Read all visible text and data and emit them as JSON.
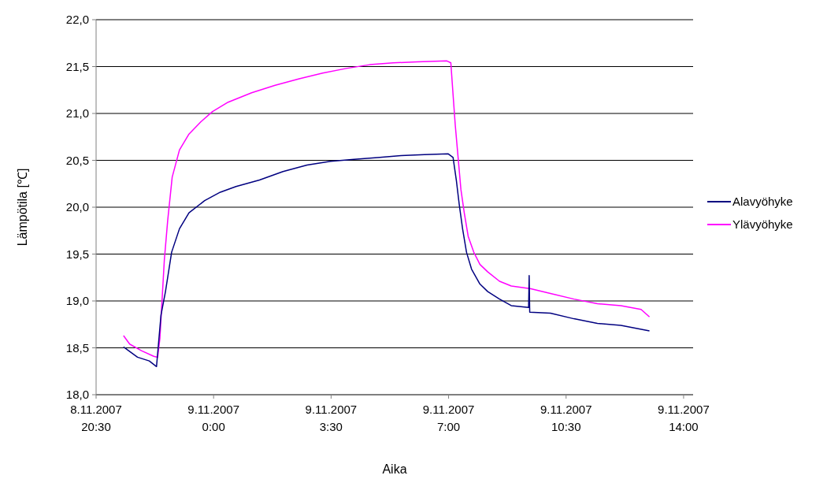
{
  "chart_data": {
    "type": "line",
    "xlabel": "Aika",
    "ylabel": "Lämpötila [℃]",
    "legend": "right",
    "grid": "y",
    "line_style": "solid",
    "marker": "none",
    "xlim": [
      "2007-11-08T20:30",
      "2007-11-09T14:17"
    ],
    "xticks": [
      {
        "value": "2007-11-08T20:30",
        "label": "8.11.2007\n20:30"
      },
      {
        "value": "2007-11-09T00:00",
        "label": "9.11.2007\n0:00"
      },
      {
        "value": "2007-11-09T03:30",
        "label": "9.11.2007\n3:30"
      },
      {
        "value": "2007-11-09T07:00",
        "label": "9.11.2007\n7:00"
      },
      {
        "value": "2007-11-09T10:30",
        "label": "9.11.2007\n10:30"
      },
      {
        "value": "2007-11-09T14:00",
        "label": "9.11.2007\n14:00"
      }
    ],
    "ylim": [
      18,
      22
    ],
    "yticks": [
      {
        "value": 18,
        "label": "18,0"
      },
      {
        "value": 18.5,
        "label": "18,5"
      },
      {
        "value": 19,
        "label": "19,0"
      },
      {
        "value": 19.5,
        "label": "19,5"
      },
      {
        "value": 20,
        "label": "20,0"
      },
      {
        "value": 20.5,
        "label": "20,5"
      },
      {
        "value": 21,
        "label": "21,0"
      },
      {
        "value": 21.5,
        "label": "21,5"
      },
      {
        "value": 22,
        "label": "22,0"
      }
    ],
    "series": [
      {
        "name": "Alavyöhyke",
        "color": "#000080",
        "x": [
          "2007-11-08T21:19",
          "2007-11-08T21:44",
          "2007-11-08T22:05",
          "2007-11-08T22:18",
          "2007-11-08T22:26",
          "2007-11-08T22:34",
          "2007-11-08T22:45",
          "2007-11-08T22:59",
          "2007-11-08T23:16",
          "2007-11-08T23:44",
          "2007-11-09T00:12",
          "2007-11-09T00:40",
          "2007-11-09T01:22",
          "2007-11-09T02:04",
          "2007-11-09T02:47",
          "2007-11-09T03:29",
          "2007-11-09T04:11",
          "2007-11-09T04:53",
          "2007-11-09T05:35",
          "2007-11-09T06:17",
          "2007-11-09T06:59",
          "2007-11-09T07:08",
          "2007-11-09T07:14",
          "2007-11-09T07:19",
          "2007-11-09T07:25",
          "2007-11-09T07:32",
          "2007-11-09T07:41",
          "2007-11-09T07:56",
          "2007-11-09T08:10",
          "2007-11-09T08:31",
          "2007-11-09T08:52",
          "2007-11-09T09:23",
          "2007-11-09T09:24",
          "2007-11-09T09:25",
          "2007-11-09T10:02",
          "2007-11-09T10:44",
          "2007-11-09T11:26",
          "2007-11-09T12:08",
          "2007-11-09T12:59"
        ],
        "values": [
          18.51,
          18.4,
          18.36,
          18.3,
          18.85,
          19.1,
          19.52,
          19.77,
          19.94,
          20.07,
          20.16,
          20.22,
          20.29,
          20.38,
          20.45,
          20.49,
          20.51,
          20.53,
          20.55,
          20.56,
          20.57,
          20.53,
          20.28,
          20.03,
          19.77,
          19.52,
          19.34,
          19.18,
          19.1,
          19.02,
          18.95,
          18.93,
          19.27,
          18.88,
          18.87,
          18.81,
          18.76,
          18.74,
          18.68
        ]
      },
      {
        "name": "Ylävyöhyke",
        "color": "#ff00ff",
        "x": [
          "2007-11-08T21:19",
          "2007-11-08T21:30",
          "2007-11-08T21:51",
          "2007-11-08T22:13",
          "2007-11-08T22:20",
          "2007-11-08T22:24",
          "2007-11-08T22:28",
          "2007-11-08T22:32",
          "2007-11-08T22:38",
          "2007-11-08T22:46",
          "2007-11-08T22:59",
          "2007-11-08T23:16",
          "2007-11-08T23:37",
          "2007-11-08T23:58",
          "2007-11-09T00:26",
          "2007-11-09T01:08",
          "2007-11-09T01:50",
          "2007-11-09T02:33",
          "2007-11-09T03:15",
          "2007-11-09T03:57",
          "2007-11-09T04:39",
          "2007-11-09T05:21",
          "2007-11-09T06:04",
          "2007-11-09T06:57",
          "2007-11-09T07:04",
          "2007-11-09T07:08",
          "2007-11-09T07:12",
          "2007-11-09T07:17",
          "2007-11-09T07:22",
          "2007-11-09T07:28",
          "2007-11-09T07:35",
          "2007-11-09T07:45",
          "2007-11-09T07:56",
          "2007-11-09T08:10",
          "2007-11-09T08:31",
          "2007-11-09T08:52",
          "2007-11-09T09:27",
          "2007-11-09T10:02",
          "2007-11-09T10:44",
          "2007-11-09T11:26",
          "2007-11-09T12:08",
          "2007-11-09T12:44",
          "2007-11-09T12:59"
        ],
        "values": [
          18.63,
          18.54,
          18.47,
          18.41,
          18.4,
          18.6,
          19.02,
          19.44,
          19.86,
          20.32,
          20.61,
          20.78,
          20.91,
          21.02,
          21.12,
          21.22,
          21.3,
          21.37,
          21.43,
          21.48,
          21.52,
          21.54,
          21.55,
          21.56,
          21.54,
          21.2,
          20.87,
          20.53,
          20.19,
          19.94,
          19.69,
          19.52,
          19.39,
          19.31,
          19.21,
          19.16,
          19.13,
          19.08,
          19.02,
          18.97,
          18.95,
          18.91,
          18.83
        ]
      }
    ]
  }
}
